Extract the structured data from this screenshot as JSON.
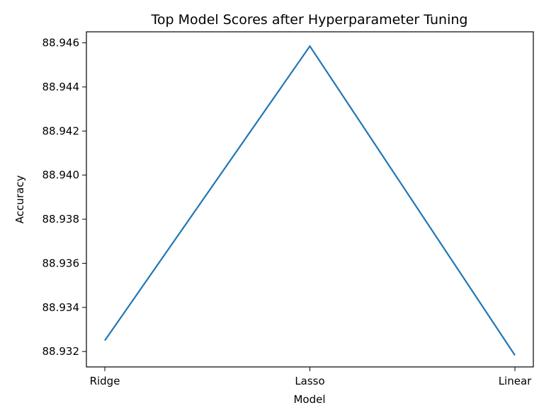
{
  "chart_data": {
    "type": "line",
    "title": "Top Model Scores after Hyperparameter Tuning",
    "xlabel": "Model",
    "ylabel": "Accuracy",
    "categories": [
      "Ridge",
      "Lasso",
      "Linear"
    ],
    "series": [
      {
        "values": [
          88.9325,
          88.94585,
          88.93183
        ],
        "color": "#1f77b4"
      }
    ],
    "ylim": [
      88.9313,
      88.9465
    ],
    "yticks": [
      88.932,
      88.934,
      88.936,
      88.938,
      88.94,
      88.942,
      88.944,
      88.946
    ],
    "ytick_labels": [
      "88.932",
      "88.934",
      "88.936",
      "88.938",
      "88.940",
      "88.942",
      "88.944",
      "88.946"
    ],
    "grid": false,
    "legend": "none"
  }
}
